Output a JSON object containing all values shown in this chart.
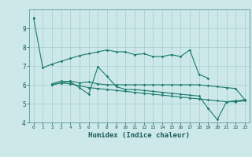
{
  "xlabel": "Humidex (Indice chaleur)",
  "xlim": [
    -0.5,
    23.5
  ],
  "ylim": [
    4,
    10
  ],
  "yticks": [
    4,
    5,
    6,
    7,
    8,
    9
  ],
  "xticks": [
    0,
    1,
    2,
    3,
    4,
    5,
    6,
    7,
    8,
    9,
    10,
    11,
    12,
    13,
    14,
    15,
    16,
    17,
    18,
    19,
    20,
    21,
    22,
    23
  ],
  "bg_color": "#cce8e8",
  "line_color": "#1a7a6e",
  "lines": [
    {
      "x": [
        0,
        1,
        2,
        3,
        4,
        5,
        6,
        7,
        8,
        9,
        10,
        11,
        12,
        13,
        14,
        15,
        16,
        17,
        18,
        19
      ],
      "y": [
        9.55,
        6.9,
        7.1,
        7.25,
        7.4,
        7.55,
        7.65,
        7.75,
        7.85,
        7.75,
        7.75,
        7.6,
        7.65,
        7.5,
        7.5,
        7.6,
        7.5,
        7.85,
        6.55,
        6.35
      ]
    },
    {
      "x": [
        2,
        3,
        4,
        5,
        6,
        7,
        8,
        9,
        10,
        11,
        12,
        13,
        14,
        15,
        16,
        17,
        18,
        19,
        20,
        21,
        22,
        23
      ],
      "y": [
        6.0,
        6.1,
        6.2,
        6.1,
        6.15,
        6.05,
        6.0,
        6.0,
        6.0,
        6.0,
        6.0,
        6.0,
        6.0,
        6.0,
        6.0,
        6.0,
        6.0,
        5.95,
        5.9,
        5.85,
        5.8,
        5.2
      ]
    },
    {
      "x": [
        2,
        3,
        4,
        5,
        6,
        7,
        8,
        9,
        10,
        11,
        12,
        13,
        14,
        15,
        16,
        17,
        18,
        19,
        20,
        21,
        22,
        23
      ],
      "y": [
        6.05,
        6.2,
        6.15,
        5.85,
        5.5,
        6.95,
        6.45,
        5.9,
        5.75,
        5.75,
        5.7,
        5.65,
        5.6,
        5.55,
        5.5,
        5.45,
        5.4,
        4.75,
        4.15,
        5.1,
        5.15,
        5.2
      ]
    },
    {
      "x": [
        2,
        3,
        4,
        5,
        6,
        7,
        8,
        9,
        10,
        11,
        12,
        13,
        14,
        15,
        16,
        17,
        18,
        19,
        20,
        21,
        22,
        23
      ],
      "y": [
        6.0,
        6.1,
        6.05,
        5.95,
        5.85,
        5.8,
        5.75,
        5.7,
        5.65,
        5.6,
        5.55,
        5.5,
        5.45,
        5.4,
        5.35,
        5.3,
        5.25,
        5.2,
        5.15,
        5.1,
        5.1,
        5.15
      ]
    }
  ]
}
